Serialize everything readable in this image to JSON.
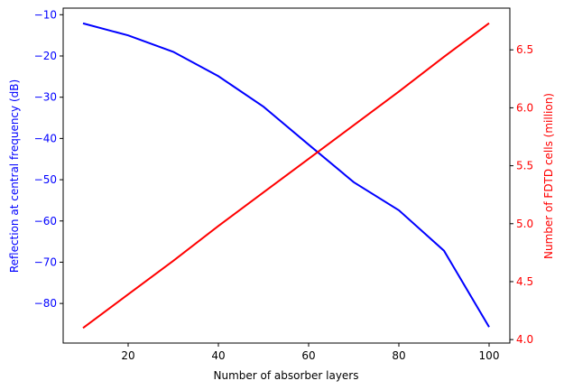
{
  "chart_data": {
    "type": "line",
    "xlabel": "Number of absorber layers",
    "x": [
      10,
      20,
      30,
      40,
      50,
      60,
      70,
      80,
      90,
      100
    ],
    "xlim": [
      5.6,
      104.6
    ],
    "xticks": [
      20,
      40,
      60,
      80,
      100
    ],
    "grid": false,
    "series": [
      {
        "axis": "left",
        "color": "#0000ff",
        "values": [
          -12.1,
          -15.0,
          -19.0,
          -24.9,
          -32.3,
          -41.5,
          -50.6,
          -57.4,
          -67.2,
          -85.7
        ]
      },
      {
        "axis": "right",
        "color": "#ff0000",
        "values": [
          4.1,
          4.39,
          4.68,
          4.98,
          5.27,
          5.56,
          5.85,
          6.14,
          6.44,
          6.73
        ]
      }
    ],
    "left_axis": {
      "label": "Reflection at central frequency (dB)",
      "color": "#0000ff",
      "ylim": [
        -89.6,
        -8.4
      ],
      "ticks": [
        -80,
        -70,
        -60,
        -50,
        -40,
        -30,
        -20,
        -10
      ]
    },
    "right_axis": {
      "label": "Number of FDTD cells (million)",
      "color": "#ff0000",
      "ylim": [
        3.97,
        6.86
      ],
      "ticks": [
        4.0,
        4.5,
        5.0,
        5.5,
        6.0,
        6.5
      ]
    }
  }
}
